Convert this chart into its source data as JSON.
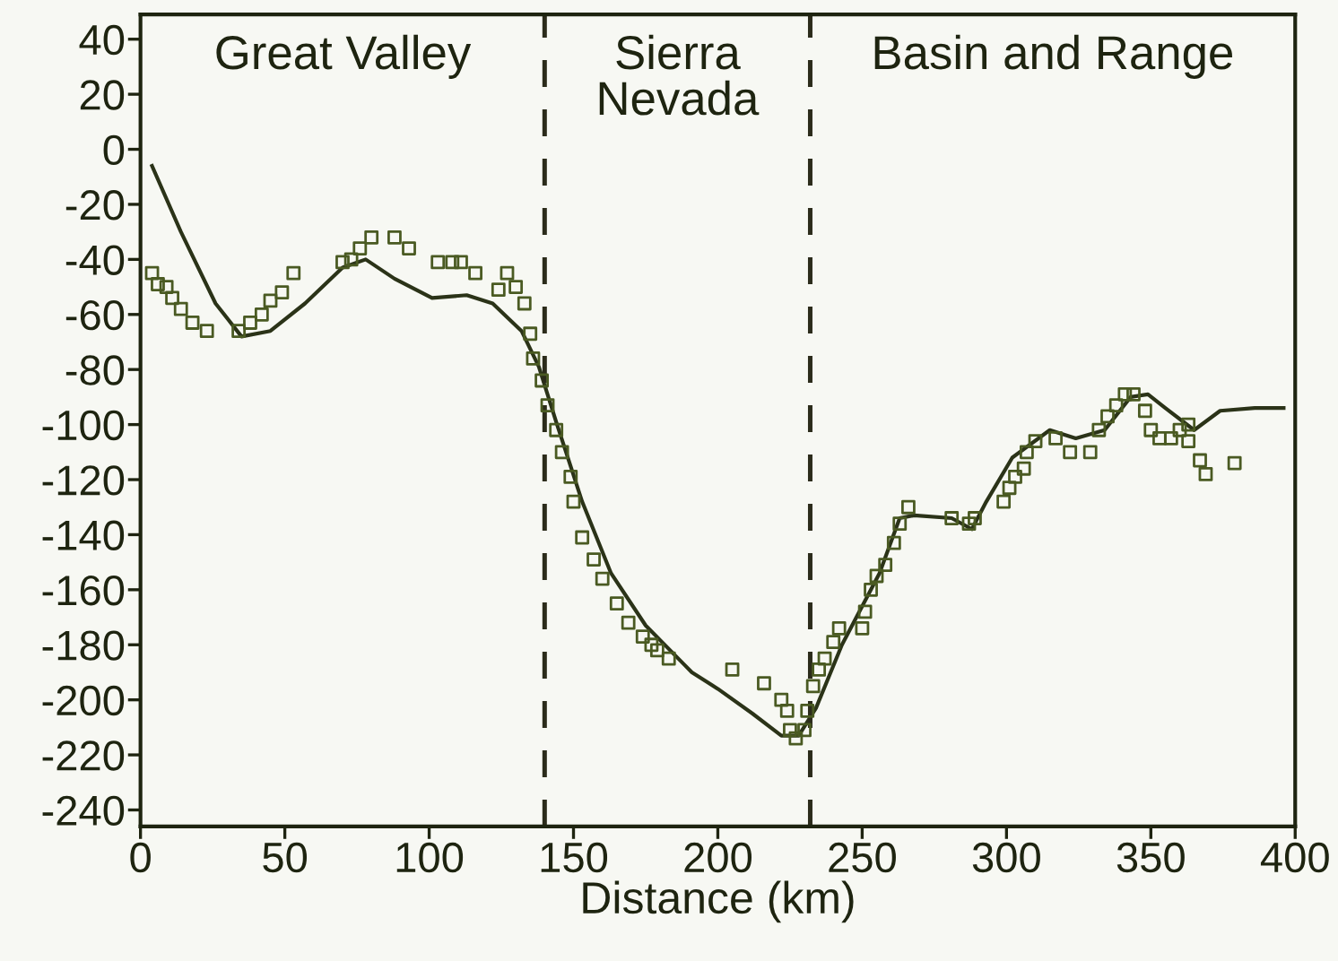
{
  "chart_data": {
    "type": "line",
    "xlabel": "Distance (km)",
    "xlim": [
      0,
      400
    ],
    "ylim": [
      -246,
      49
    ],
    "xticks": [
      0,
      50,
      100,
      150,
      200,
      250,
      300,
      350,
      400
    ],
    "yticks": [
      40,
      20,
      0,
      -20,
      -40,
      -60,
      -80,
      -100,
      -120,
      -140,
      -160,
      -180,
      -200,
      -220,
      -240
    ],
    "grid": false,
    "legend": false,
    "annotations": [
      "Great Valley",
      "Sierra\nNevada",
      "Basin and Range"
    ],
    "ref_lines": [
      {
        "axis": "x",
        "value": 140,
        "color": "#2b2b1a",
        "line_style": "dashed"
      },
      {
        "axis": "x",
        "value": 232,
        "color": "#2b2b1a",
        "line_style": "dashed"
      }
    ],
    "series": [
      {
        "color": "#2b3318",
        "line_style": "solid",
        "marker": "none",
        "x": [
          4,
          14,
          26,
          35,
          45,
          57,
          70,
          78,
          88,
          101,
          113,
          122,
          132,
          138,
          144,
          153,
          163,
          175,
          191,
          200,
          212,
          222,
          228,
          234,
          243,
          256,
          263,
          268,
          281,
          288,
          293,
          302,
          315,
          324,
          334,
          343,
          349,
          355,
          365,
          374,
          386,
          396
        ],
        "values": [
          -6,
          -30,
          -56,
          -68,
          -66,
          -56,
          -43,
          -40,
          -47,
          -54,
          -53,
          -56,
          -66,
          -79,
          -99,
          -128,
          -154,
          -173,
          -190,
          -196,
          -205,
          -213,
          -213,
          -203,
          -180,
          -154,
          -134,
          -133,
          -134,
          -138,
          -128,
          -112,
          -102,
          -105,
          -102,
          -90,
          -89,
          -94,
          -102,
          -95,
          -94,
          -94
        ]
      },
      {
        "type": "scatter",
        "color": "#4a5a22",
        "marker": "square",
        "x": [
          4,
          6,
          9,
          11,
          14,
          18,
          23,
          34,
          38,
          42,
          45,
          49,
          53,
          70,
          73,
          76,
          80,
          88,
          93,
          103,
          108,
          111,
          116,
          124,
          127,
          130,
          133,
          135,
          136,
          139,
          141,
          144,
          146,
          149,
          150,
          153,
          157,
          160,
          165,
          169,
          174,
          179,
          177,
          183,
          205,
          216,
          222,
          224,
          225,
          227,
          230,
          231,
          233,
          235,
          237,
          240,
          242,
          250,
          251,
          253,
          255,
          258,
          261,
          263,
          266,
          281,
          287,
          289,
          299,
          301,
          303,
          306,
          307,
          310,
          317,
          322,
          329,
          332,
          335,
          338,
          341,
          344,
          348,
          350,
          353,
          357,
          360,
          363,
          363,
          367,
          369,
          379
        ],
        "values": [
          -45,
          -49,
          -50,
          -54,
          -58,
          -63,
          -66,
          -66,
          -63,
          -60,
          -55,
          -52,
          -45,
          -41,
          -40,
          -36,
          -32,
          -32,
          -36,
          -41,
          -41,
          -41,
          -45,
          -51,
          -45,
          -50,
          -56,
          -67,
          -76,
          -84,
          -93,
          -102,
          -110,
          -119,
          -128,
          -141,
          -149,
          -156,
          -165,
          -172,
          -177,
          -182,
          -180,
          -185,
          -189,
          -194,
          -200,
          -204,
          -211,
          -214,
          -211,
          -204,
          -195,
          -189,
          -185,
          -179,
          -174,
          -174,
          -168,
          -160,
          -155,
          -151,
          -143,
          -136,
          -130,
          -134,
          -136,
          -134,
          -128,
          -123,
          -119,
          -116,
          -110,
          -106,
          -105,
          -110,
          -110,
          -102,
          -97,
          -93,
          -89,
          -89,
          -95,
          -102,
          -105,
          -105,
          -102,
          -100,
          -106,
          -113,
          -118,
          -114
        ]
      }
    ]
  }
}
